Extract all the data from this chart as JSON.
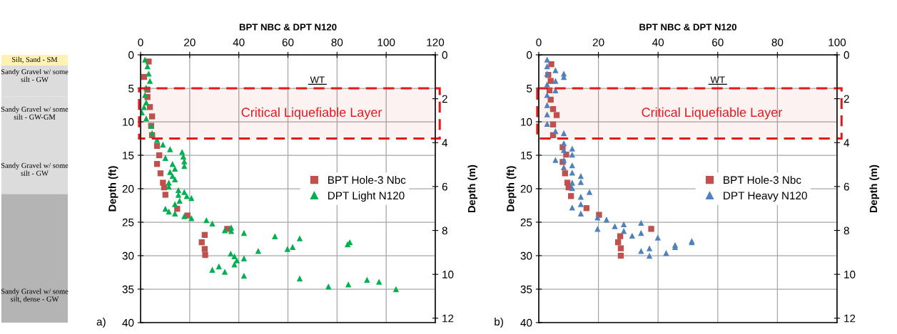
{
  "chart_data": [
    {
      "type": "other",
      "annotations": [
        "Silt, Sand - SM",
        "Sandy Gravel w/ some silt - GW",
        "Sandy Gravel w/ some silt - GW-GM",
        "Sandy Gravel w/ some silt - GW",
        "Sandy Gravel w/ some silt, dense - GW"
      ]
    },
    {
      "type": "scatter",
      "xlabel": "BPT NBC & DPT N120",
      "ylabel": "Depth (ft)",
      "y2label": "Depth (m)",
      "xlim": [
        0,
        120
      ],
      "xticks": [
        0,
        20,
        40,
        60,
        80,
        100,
        120
      ],
      "ylim": [
        40,
        0
      ],
      "yticks": [
        0,
        5,
        10,
        15,
        20,
        25,
        30,
        35,
        40
      ],
      "y2lim": [
        12.2,
        0
      ],
      "y2ticks": [
        0,
        2,
        4,
        6,
        8,
        10,
        12
      ],
      "grid": true,
      "legend": "center right",
      "bands": [
        {
          "axis": "y",
          "from": 5,
          "to": 12.5,
          "label": "Critical Liquefiable Layer",
          "color": "#e31a1c"
        }
      ],
      "annotations": [
        "WT",
        "a)"
      ],
      "series": [
        {
          "name": "BPT Hole-3 Nbc",
          "color": "#c0504d",
          "marker": "square",
          "x": [
            3.3,
            1.4,
            2.8,
            2.8,
            3.8,
            4.7,
            4.3,
            4.7,
            6.7,
            7.6,
            6.7,
            8.1,
            9.1,
            9.6,
            10.1,
            14.9,
            19.1,
            35.3,
            26.1,
            24.9,
            26.1,
            26.3
          ],
          "values": [
            1.0,
            3.3,
            5.2,
            6.3,
            7.8,
            9.2,
            10.6,
            12.0,
            13.6,
            15.0,
            16.3,
            17.7,
            19.1,
            19.8,
            20.9,
            23.0,
            24.0,
            26.0,
            26.9,
            28.0,
            29.0,
            29.9
          ]
        },
        {
          "name": "DPT Light N120",
          "color": "#00b050",
          "marker": "triangle",
          "x": [
            1.8,
            2.8,
            3.3,
            3.8,
            2.3,
            1.8,
            2.3,
            1.4,
            0.5,
            2.3,
            4.3,
            4.7,
            6.7,
            9.1,
            12.0,
            16.9,
            17.4,
            10.1,
            17.8,
            17.8,
            13.0,
            14.0,
            12.0,
            13.0,
            14.0,
            11.5,
            11.5,
            15.4,
            17.8,
            15.4,
            18.8,
            20.7,
            15.9,
            14.0,
            10.1,
            11.5,
            14.0,
            17.8,
            20.7,
            26.8,
            29.2,
            34.3,
            36.9,
            36.9,
            42.1,
            54.7,
            64.8,
            47.9,
            59.8,
            61.9,
            84.3,
            85.2,
            36.7,
            38.2,
            39.2,
            38.2,
            42.1,
            29.2,
            31.9,
            34.3,
            42.1,
            64.8,
            76.5,
            84.6,
            92.2,
            97.1,
            104.0
          ],
          "values": [
            0.7,
            1.7,
            2.8,
            3.9,
            4.9,
            6.0,
            7.1,
            7.8,
            8.6,
            9.5,
            10.6,
            11.7,
            12.7,
            13.4,
            14.1,
            14.5,
            15.2,
            15.4,
            15.9,
            16.6,
            16.3,
            17.0,
            17.5,
            18.1,
            18.6,
            19.1,
            19.7,
            20.2,
            20.5,
            20.9,
            21.1,
            21.4,
            21.8,
            22.3,
            23.0,
            23.4,
            23.7,
            24.1,
            24.4,
            24.7,
            25.2,
            26.2,
            25.8,
            26.3,
            26.6,
            27.1,
            27.4,
            29.3,
            29.0,
            28.7,
            28.3,
            28.0,
            29.7,
            30.1,
            30.7,
            31.3,
            30.4,
            32.1,
            31.6,
            32.4,
            33.0,
            33.4,
            34.6,
            34.3,
            33.6,
            33.9,
            35.0
          ]
        }
      ]
    },
    {
      "type": "scatter",
      "xlabel": "BPT NBC & DPT N120",
      "ylabel": "Depth (ft)",
      "y2label": "Depth (m)",
      "xlim": [
        0,
        100
      ],
      "xticks": [
        0,
        20,
        40,
        60,
        80,
        100
      ],
      "ylim": [
        40,
        0
      ],
      "yticks": [
        0,
        5,
        10,
        15,
        20,
        25,
        30,
        35,
        40
      ],
      "y2lim": [
        12.2,
        0
      ],
      "y2ticks": [
        0,
        2,
        4,
        6,
        8,
        10,
        12
      ],
      "grid": true,
      "legend": "center right",
      "bands": [
        {
          "axis": "y",
          "from": 5,
          "to": 12.5,
          "label": "Critical Liquefiable Layer",
          "color": "#e31a1c"
        }
      ],
      "annotations": [
        "WT",
        "b)"
      ],
      "series": [
        {
          "name": "BPT Hole-3 Nbc",
          "color": "#c0504d",
          "marker": "square",
          "x": [
            4.2,
            3.2,
            4.0,
            3.6,
            4.0,
            4.8,
            6.0,
            4.8,
            4.8,
            8.0,
            9.2,
            8.0,
            8.8,
            9.6,
            10.0,
            10.8,
            16.0,
            20.2,
            37.7,
            27.3,
            26.6,
            27.5,
            27.5
          ],
          "values": [
            1.4,
            3.0,
            3.9,
            5.3,
            6.7,
            8.1,
            9.0,
            10.4,
            12.0,
            13.8,
            14.9,
            16.0,
            17.7,
            19.1,
            19.8,
            21.1,
            22.9,
            23.9,
            26.0,
            27.1,
            28.0,
            28.9,
            30.0
          ]
        },
        {
          "name": "DPT Heavy N120",
          "color": "#4f81bd",
          "marker": "triangle",
          "x": [
            2.8,
            2.8,
            2.8,
            5.6,
            8.4,
            8.4,
            5.6,
            5.6,
            2.8,
            2.8,
            2.8,
            2.8,
            2.8,
            5.6,
            8.4,
            8.4,
            8.4,
            5.6,
            8.4,
            8.4,
            11.2,
            11.2,
            11.2,
            11.2,
            11.2,
            11.2,
            11.2,
            14.1,
            14.1,
            17.0,
            14.1,
            14.1,
            14.1,
            19.7,
            19.7,
            22.7,
            25.5,
            28.5,
            28.5,
            31.3,
            34.3,
            34.3,
            39.9,
            37.1,
            34.3,
            37.1,
            42.7,
            45.7,
            45.7,
            51.3,
            51.3
          ],
          "values": [
            0.7,
            1.7,
            2.8,
            2.3,
            2.8,
            3.3,
            3.9,
            5.3,
            4.4,
            6.0,
            7.5,
            8.9,
            10.3,
            11.4,
            11.7,
            13.2,
            14.2,
            15.7,
            15.7,
            16.8,
            14.0,
            14.9,
            16.5,
            17.6,
            19.1,
            19.9,
            22.8,
            18.1,
            19.0,
            20.5,
            21.2,
            22.3,
            23.7,
            24.3,
            26.0,
            24.6,
            25.6,
            25.3,
            26.3,
            27.0,
            25.1,
            26.6,
            27.3,
            28.9,
            29.3,
            30.0,
            29.6,
            28.4,
            28.7,
            27.8,
            28.0
          ]
        }
      ]
    }
  ]
}
